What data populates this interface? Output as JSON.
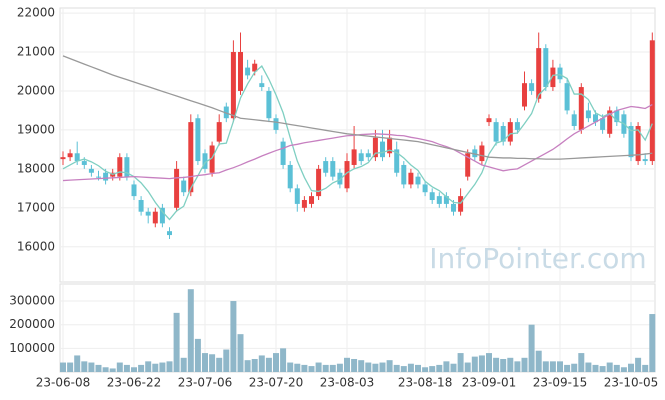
{
  "chart_data": [
    {
      "type": "candlestick",
      "categories": [
        "23-06-08",
        null,
        null,
        null,
        null,
        null,
        null,
        null,
        null,
        null,
        "23-06-22",
        null,
        null,
        null,
        null,
        null,
        null,
        null,
        null,
        null,
        "23-07-06",
        null,
        null,
        null,
        null,
        null,
        null,
        null,
        null,
        null,
        "23-07-20",
        null,
        null,
        null,
        null,
        null,
        null,
        null,
        null,
        null,
        "23-08-03",
        null,
        null,
        null,
        null,
        null,
        null,
        null,
        null,
        null,
        null,
        "23-08-18",
        null,
        null,
        null,
        null,
        null,
        null,
        null,
        null,
        "23-09-01",
        null,
        null,
        null,
        null,
        null,
        null,
        null,
        null,
        null,
        "23-09-15",
        null,
        null,
        null,
        null,
        null,
        null,
        null,
        null,
        null,
        "23-10-05",
        null,
        null,
        null
      ],
      "open": [
        18250,
        18300,
        18400,
        18200,
        18000,
        17800,
        17900,
        17800,
        17800,
        18300,
        17600,
        17200,
        16900,
        16600,
        17000,
        16400,
        17000,
        17700,
        17400,
        19300,
        18400,
        17900,
        18700,
        19600,
        19300,
        20000,
        20600,
        20500,
        20200,
        20000,
        19300,
        18700,
        18100,
        17500,
        17000,
        17100,
        17300,
        18200,
        18200,
        17900,
        17500,
        18100,
        18400,
        18400,
        18300,
        18700,
        18400,
        18500,
        18100,
        17600,
        17800,
        17600,
        17400,
        17300,
        17300,
        17100,
        16900,
        17800,
        18500,
        18200,
        19200,
        19200,
        19100,
        18700,
        19200,
        19600,
        20200,
        19800,
        21100,
        20100,
        20600,
        20200,
        19400,
        19000,
        19500,
        19400,
        19300,
        18900,
        19500,
        19400,
        19100,
        18200,
        18250,
        18200
      ],
      "high": [
        18450,
        18500,
        18700,
        18300,
        18100,
        17950,
        18000,
        18000,
        18400,
        18400,
        17700,
        17300,
        17000,
        17000,
        17100,
        16500,
        18200,
        17800,
        19400,
        19400,
        18500,
        18700,
        19400,
        19700,
        21300,
        21500,
        20800,
        20800,
        20400,
        20100,
        19400,
        18800,
        18200,
        17600,
        17300,
        17400,
        18100,
        18300,
        18300,
        18000,
        18400,
        19100,
        18500,
        18500,
        19000,
        19000,
        19000,
        18700,
        18200,
        18000,
        17900,
        17700,
        17500,
        17400,
        17400,
        17200,
        17500,
        18500,
        18600,
        18700,
        19400,
        19300,
        19200,
        19300,
        19300,
        20500,
        20300,
        21500,
        21200,
        20800,
        20700,
        20300,
        19500,
        20200,
        19700,
        19500,
        19400,
        19600,
        19600,
        19500,
        19200,
        19200,
        18400,
        21500
      ],
      "low": [
        18100,
        18200,
        18100,
        18000,
        17800,
        17700,
        17600,
        17700,
        17700,
        17700,
        17200,
        16800,
        16600,
        16500,
        16500,
        16200,
        16900,
        17300,
        17300,
        18100,
        17900,
        17800,
        18600,
        19200,
        19200,
        19900,
        20300,
        20400,
        20000,
        19200,
        18900,
        18000,
        17400,
        16900,
        16900,
        17000,
        17200,
        17800,
        17700,
        17500,
        17400,
        18000,
        18100,
        18200,
        18200,
        18200,
        18300,
        17800,
        17500,
        17500,
        17500,
        17300,
        17100,
        17000,
        17000,
        16800,
        16800,
        17700,
        18200,
        18100,
        19100,
        18600,
        18600,
        18600,
        18900,
        19500,
        19900,
        19700,
        20000,
        20000,
        20200,
        19400,
        19000,
        18900,
        19200,
        19100,
        18900,
        18800,
        19100,
        18800,
        18200,
        18100,
        18100,
        18100
      ],
      "close": [
        18300,
        18400,
        18200,
        18100,
        17900,
        17800,
        17700,
        17900,
        18300,
        17800,
        17300,
        16900,
        16800,
        16900,
        16600,
        16300,
        18000,
        17400,
        19200,
        18200,
        18000,
        18600,
        19200,
        19300,
        21000,
        21000,
        20400,
        20700,
        20100,
        19300,
        19000,
        18100,
        17500,
        17100,
        17200,
        17300,
        18000,
        17900,
        17800,
        17600,
        18200,
        18500,
        18200,
        18300,
        18800,
        18300,
        18800,
        17900,
        17600,
        17900,
        17600,
        17400,
        17200,
        17100,
        17100,
        16900,
        17300,
        18400,
        18300,
        18600,
        19300,
        18700,
        18700,
        19200,
        19000,
        20200,
        20000,
        21100,
        20100,
        20600,
        20300,
        19500,
        19100,
        20100,
        19300,
        19200,
        19000,
        19500,
        19200,
        18900,
        18300,
        19100,
        18200,
        21300
      ],
      "up_color": "#e8403f",
      "down_color": "#5bc0d6",
      "lines": [
        {
          "color": "#7fcfc2",
          "values": [
            18000,
            18100,
            18200,
            18250,
            18180,
            18080,
            17940,
            17860,
            17920,
            17900,
            17800,
            17640,
            17420,
            17140,
            16900,
            16700,
            16920,
            17040,
            17500,
            17820,
            18160,
            18280,
            18640,
            18660,
            19220,
            19820,
            20180,
            20480,
            20640,
            20300,
            19900,
            19440,
            18800,
            18200,
            17780,
            17440,
            17420,
            17500,
            17640,
            17720,
            17900,
            18000,
            18060,
            18160,
            18400,
            18420,
            18480,
            18420,
            18280,
            18100,
            17960,
            17680,
            17540,
            17440,
            17280,
            17140,
            17120,
            17360,
            17600,
            17900,
            18380,
            18660,
            18720,
            18900,
            18920,
            19160,
            19420,
            19900,
            20080,
            20400,
            20420,
            20320,
            19920,
            19920,
            19780,
            19440,
            19340,
            19420,
            19240,
            19160,
            18980,
            19000,
            18740,
            19160
          ]
        },
        {
          "color": "#c780c0",
          "values": [
            17700,
            17710,
            17720,
            17730,
            17740,
            17750,
            17760,
            17770,
            17780,
            17790,
            17800,
            17790,
            17780,
            17770,
            17760,
            17750,
            17770,
            17780,
            17800,
            17830,
            17850,
            17880,
            17900,
            17970,
            18030,
            18100,
            18180,
            18250,
            18330,
            18400,
            18470,
            18530,
            18600,
            18630,
            18670,
            18700,
            18730,
            18760,
            18790,
            18820,
            18850,
            18860,
            18880,
            18890,
            18900,
            18890,
            18880,
            18860,
            18850,
            18810,
            18780,
            18740,
            18700,
            18630,
            18570,
            18500,
            18400,
            18300,
            18200,
            18100,
            18050,
            18000,
            17950,
            17980,
            18000,
            18100,
            18200,
            18300,
            18400,
            18500,
            18630,
            18770,
            18900,
            19000,
            19100,
            19200,
            19300,
            19400,
            19500,
            19550,
            19600,
            19580,
            19550,
            19650
          ]
        },
        {
          "color": "#999999",
          "values": [
            20900,
            20830,
            20760,
            20690,
            20620,
            20550,
            20480,
            20410,
            20350,
            20290,
            20230,
            20170,
            20110,
            20050,
            19990,
            19930,
            19870,
            19810,
            19750,
            19690,
            19630,
            19570,
            19500,
            19430,
            19370,
            19300,
            19280,
            19260,
            19240,
            19220,
            19200,
            19170,
            19140,
            19110,
            19080,
            19050,
            19020,
            18990,
            18960,
            18930,
            18900,
            18880,
            18860,
            18840,
            18820,
            18800,
            18780,
            18760,
            18740,
            18720,
            18700,
            18660,
            18620,
            18580,
            18540,
            18500,
            18460,
            18420,
            18380,
            18340,
            18300,
            18290,
            18280,
            18280,
            18270,
            18270,
            18260,
            18260,
            18250,
            18250,
            18250,
            18260,
            18270,
            18280,
            18290,
            18300,
            18310,
            18320,
            18330,
            18340,
            18350,
            18360,
            18380,
            18400
          ]
        }
      ],
      "ylim": [
        15095,
        22130
      ],
      "yticks": [
        16000,
        17000,
        18000,
        19000,
        20000,
        21000,
        22000
      ],
      "annotation": "InfoPointer.com"
    },
    {
      "type": "bar",
      "color": "#8fb7c9",
      "values": [
        40000,
        40000,
        70000,
        45000,
        40000,
        30000,
        20000,
        15000,
        40000,
        30000,
        20000,
        30000,
        45000,
        35000,
        40000,
        45000,
        250000,
        60000,
        350000,
        140000,
        80000,
        75000,
        60000,
        95000,
        300000,
        160000,
        50000,
        55000,
        70000,
        60000,
        80000,
        100000,
        40000,
        35000,
        30000,
        25000,
        40000,
        30000,
        30000,
        35000,
        60000,
        55000,
        50000,
        40000,
        35000,
        40000,
        50000,
        30000,
        25000,
        35000,
        30000,
        20000,
        25000,
        30000,
        45000,
        35000,
        80000,
        40000,
        65000,
        70000,
        80000,
        60000,
        55000,
        60000,
        45000,
        60000,
        200000,
        90000,
        45000,
        45000,
        45000,
        30000,
        35000,
        80000,
        40000,
        30000,
        25000,
        40000,
        30000,
        20000,
        35000,
        60000,
        30000,
        245000
      ],
      "ylim": [
        0,
        372000
      ],
      "yticks": [
        100000,
        200000,
        300000
      ]
    }
  ]
}
